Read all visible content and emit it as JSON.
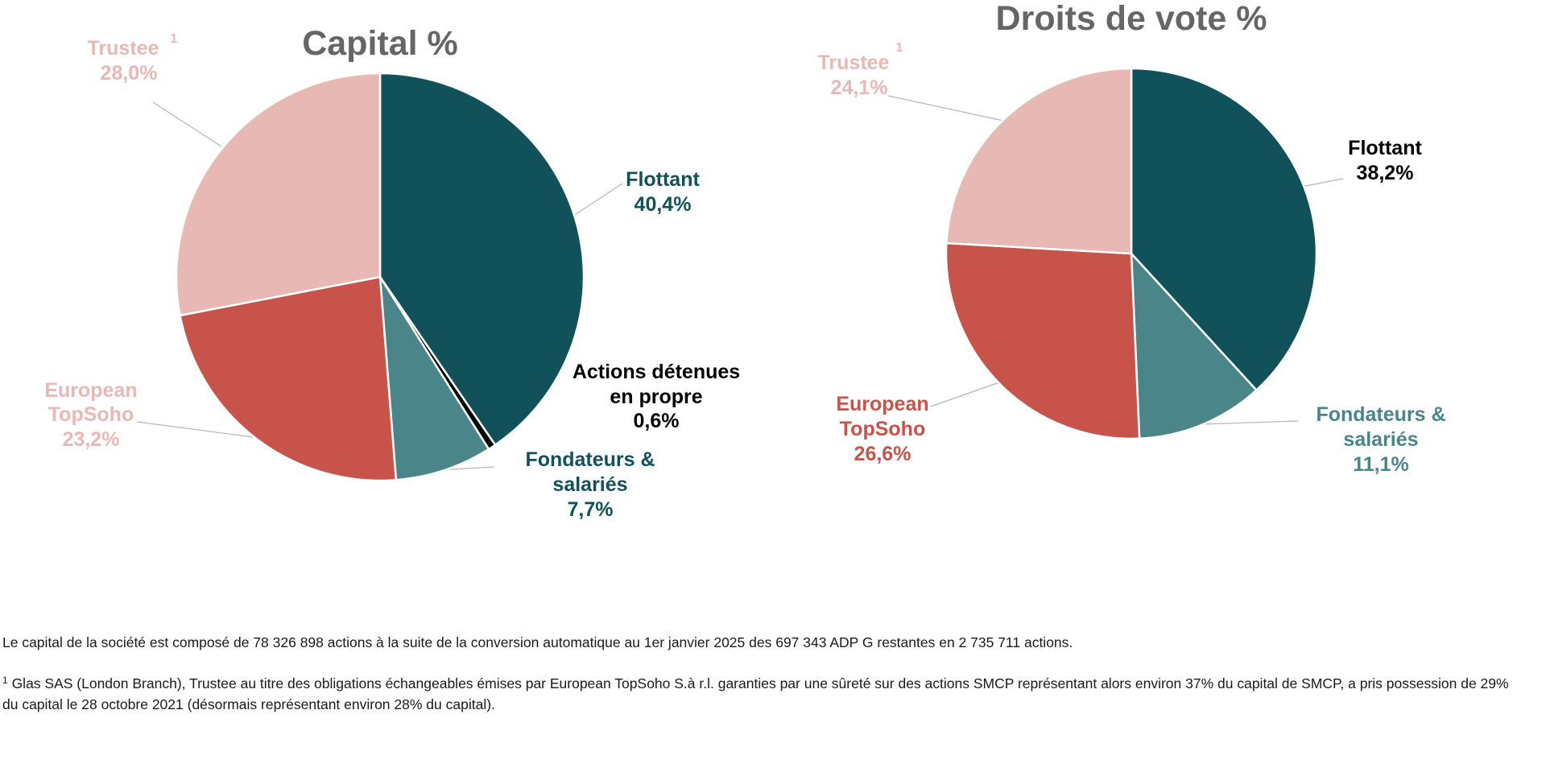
{
  "chart_data": [
    {
      "type": "pie",
      "title": "Capital %",
      "slices": [
        {
          "label": "Flottant",
          "value": 40.4,
          "value_label": "40,4%",
          "color": "#11525A",
          "label_color": "#11525A"
        },
        {
          "label": "Actions détenues en propre",
          "value": 0.6,
          "value_label": "0,6%",
          "color": "#000000",
          "label_color": "#000000"
        },
        {
          "label": "Fondateurs & salariés",
          "value": 7.7,
          "value_label": "7,7%",
          "color": "#4A8689",
          "label_color": "#11525A"
        },
        {
          "label": "European TopSoho",
          "value": 23.2,
          "value_label": "23,2%",
          "color": "#C8534B",
          "label_color": "#E8B8B5"
        },
        {
          "label": "Trustee",
          "footnote_marker": "1",
          "value": 28.0,
          "value_label": "28,0%",
          "color": "#E8B8B5",
          "label_color": "#E8B8B5"
        }
      ]
    },
    {
      "type": "pie",
      "title": "Droits de vote %",
      "slices": [
        {
          "label": "Flottant",
          "value": 38.2,
          "value_label": "38,2%",
          "color": "#11525A",
          "label_color": "#000000"
        },
        {
          "label": "Fondateurs & salariés",
          "value": 11.1,
          "value_label": "11,1%",
          "color": "#4A8689",
          "label_color": "#4A8689"
        },
        {
          "label": "European TopSoho",
          "value": 26.6,
          "value_label": "26,6%",
          "color": "#C8534B",
          "label_color": "#C8534B"
        },
        {
          "label": "Trustee",
          "footnote_marker": "1",
          "value": 24.1,
          "value_label": "24,1%",
          "color": "#E8B8B5",
          "label_color": "#E8B8B5"
        }
      ]
    }
  ],
  "notes": {
    "capital": "Le capital de la société est composé de 78 326 898 actions à la suite de la conversion automatique au 1er janvier 2025 des 697 343 ADP G restantes en 2 735 711 actions.",
    "trustee_marker": "1",
    "trustee": "Glas SAS (London Branch), Trustee au titre des obligations échangeables émises par European TopSoho S.à r.l. garanties par une sûreté sur des actions SMCP représentant alors environ 37% du capital de SMCP, a pris possession de 29% du capital le 28 octobre 2021 (désormais représentant environ 28% du capital)."
  }
}
